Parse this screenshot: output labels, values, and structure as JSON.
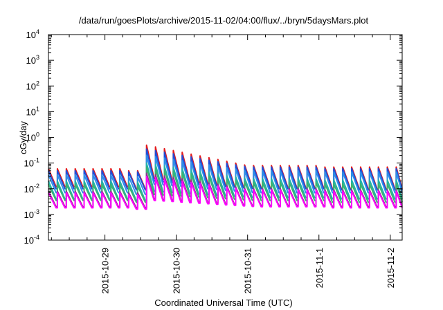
{
  "chart_data": {
    "type": "line",
    "title": "/data/run/goesPlots/archive/2015-11-02/04:00/flux/../bryn/5daysMars.plot",
    "xlabel": "Coordinated Universal Time (UTC)",
    "ylabel": "cGy/day",
    "yscale": "log",
    "ylim": [
      0.0001,
      10000
    ],
    "xlim": [
      "2015-10-28 05:00",
      "2015-11-02 04:00"
    ],
    "y_ticks": [
      {
        "base": "10",
        "exp": "-4"
      },
      {
        "base": "10",
        "exp": "-3"
      },
      {
        "base": "10",
        "exp": "-2"
      },
      {
        "base": "10",
        "exp": "-1"
      },
      {
        "base": "10",
        "exp": "0"
      },
      {
        "base": "10",
        "exp": "1"
      },
      {
        "base": "10",
        "exp": "2"
      },
      {
        "base": "10",
        "exp": "3"
      },
      {
        "base": "10",
        "exp": "4"
      }
    ],
    "x_tick_labels": [
      "2015-10-29",
      "2015-10-30",
      "2015-10-31",
      "2015-11-1",
      "2015-11-2"
    ],
    "grid": false,
    "legend": "none",
    "sawtooth_period_hours": 3,
    "series": [
      {
        "color": "#e41a1c",
        "peaks": [
          0.06,
          0.05,
          0.5,
          0.09,
          0.08,
          0.07
        ]
      },
      {
        "color": "#1f4fd8",
        "peaks": [
          0.05,
          0.045,
          0.35,
          0.08,
          0.07,
          0.06
        ]
      },
      {
        "color": "#2e8fe8",
        "peaks": [
          0.035,
          0.03,
          0.2,
          0.06,
          0.05,
          0.045
        ]
      },
      {
        "color": "#20b2aa",
        "peaks": [
          0.02,
          0.018,
          0.1,
          0.03,
          0.025,
          0.022
        ]
      },
      {
        "color": "#3cb371",
        "peaks": [
          0.015,
          0.013,
          0.07,
          0.02,
          0.018,
          0.016
        ]
      },
      {
        "color": "#8b3a8b",
        "peaks": [
          0.008,
          0.007,
          0.04,
          0.012,
          0.01,
          0.009
        ]
      },
      {
        "color": "#ff00ff",
        "peaks": [
          0.007,
          0.006,
          0.03,
          0.01,
          0.009,
          0.008
        ]
      }
    ],
    "minima": [
      [
        0.012,
        0.01,
        0.025,
        0.012,
        0.011,
        0.01
      ],
      [
        0.01,
        0.009,
        0.02,
        0.011,
        0.01,
        0.009
      ],
      [
        0.007,
        0.006,
        0.015,
        0.008,
        0.007,
        0.007
      ],
      [
        0.004,
        0.0035,
        0.008,
        0.005,
        0.0045,
        0.004
      ],
      [
        0.0035,
        0.003,
        0.006,
        0.004,
        0.0035,
        0.003
      ],
      [
        0.002,
        0.0018,
        0.004,
        0.0025,
        0.0022,
        0.002
      ],
      [
        0.0018,
        0.0016,
        0.0035,
        0.0022,
        0.002,
        0.0018
      ]
    ]
  }
}
